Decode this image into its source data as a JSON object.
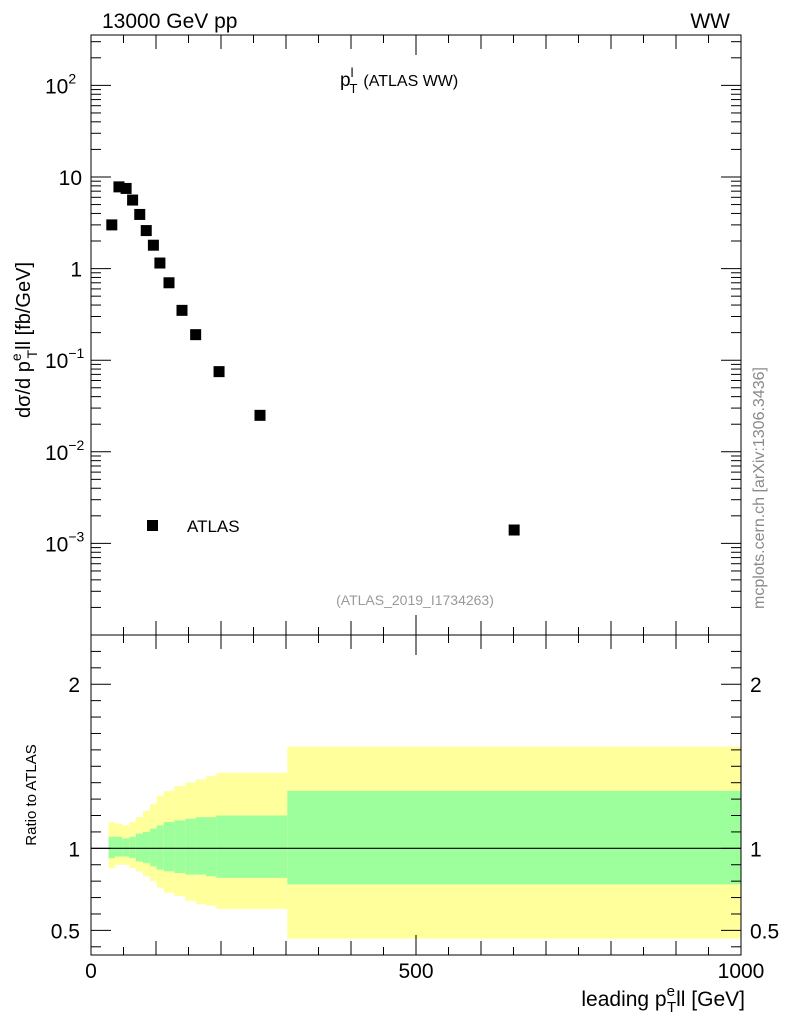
{
  "header": {
    "left": "13000 GeV pp",
    "right": "WW"
  },
  "side_label": "mcplots.cern.ch [arXiv:1306.3436]",
  "chart_data": {
    "type": "scatter",
    "title_main": "p",
    "title_sup": "l",
    "title_sub": "T",
    "title_rest": "(ATLAS WW)",
    "ref_note": "(ATLAS_2019_I1734263)",
    "ylabel_text": "dσ/d p",
    "ylabel_sup": "e",
    "ylabel_sub": "T",
    "ylabel_rest": "ll [fb/GeV]",
    "xlabel_text": "leading p",
    "xlabel_sup": "e",
    "xlabel_sub": "T",
    "xlabel_rest": "ll [GeV]",
    "xlim": [
      0,
      1000
    ],
    "ylim_log10": [
      -4,
      2.55
    ],
    "x_ticks": [
      "0",
      "500",
      "1000"
    ],
    "y_ticks": [
      {
        "base": "10",
        "exp": "2",
        "value": 100
      },
      {
        "base": "10",
        "exp": "",
        "value": 10
      },
      {
        "base": "1",
        "exp": "",
        "value": 1
      },
      {
        "base": "10",
        "exp": "−1",
        "value": 0.1
      },
      {
        "base": "10",
        "exp": "−2",
        "value": 0.01
      },
      {
        "base": "10",
        "exp": "−3",
        "value": 0.001
      }
    ],
    "legend": [
      {
        "label": "ATLAS",
        "marker": "square"
      }
    ],
    "series": [
      {
        "name": "ATLAS",
        "x": [
          32,
          43,
          54,
          64,
          75,
          85,
          96,
          106,
          120,
          140,
          161,
          197,
          260,
          651
        ],
        "y": [
          3.0,
          7.8,
          7.5,
          5.6,
          3.9,
          2.6,
          1.8,
          1.15,
          0.7,
          0.35,
          0.19,
          0.075,
          0.025,
          0.0014
        ]
      }
    ],
    "ratio": {
      "ylabel": "Ratio to ATLAS",
      "ylim": [
        0.35,
        2.3
      ],
      "y_ticks": [
        "2",
        "1",
        "0.5"
      ],
      "y_tick_values": [
        2,
        1,
        0.5
      ],
      "reference": 1,
      "colors": {
        "inner": "#9cff9c",
        "outer": "#ffff9c"
      },
      "bands": [
        {
          "x0": 27,
          "x1": 37,
          "inner": [
            0.94,
            1.07
          ],
          "outer": [
            0.88,
            1.16
          ]
        },
        {
          "x0": 37,
          "x1": 48,
          "inner": [
            0.95,
            1.07
          ],
          "outer": [
            0.9,
            1.15
          ]
        },
        {
          "x0": 48,
          "x1": 59,
          "inner": [
            0.95,
            1.06
          ],
          "outer": [
            0.9,
            1.14
          ]
        },
        {
          "x0": 59,
          "x1": 69,
          "inner": [
            0.94,
            1.07
          ],
          "outer": [
            0.88,
            1.16
          ]
        },
        {
          "x0": 69,
          "x1": 80,
          "inner": [
            0.92,
            1.09
          ],
          "outer": [
            0.86,
            1.19
          ]
        },
        {
          "x0": 80,
          "x1": 91,
          "inner": [
            0.91,
            1.1
          ],
          "outer": [
            0.83,
            1.23
          ]
        },
        {
          "x0": 91,
          "x1": 101,
          "inner": [
            0.89,
            1.12
          ],
          "outer": [
            0.8,
            1.27
          ]
        },
        {
          "x0": 101,
          "x1": 112,
          "inner": [
            0.87,
            1.14
          ],
          "outer": [
            0.76,
            1.32
          ]
        },
        {
          "x0": 112,
          "x1": 128,
          "inner": [
            0.86,
            1.16
          ],
          "outer": [
            0.73,
            1.35
          ]
        },
        {
          "x0": 128,
          "x1": 145,
          "inner": [
            0.85,
            1.17
          ],
          "outer": [
            0.71,
            1.38
          ]
        },
        {
          "x0": 145,
          "x1": 161,
          "inner": [
            0.84,
            1.18
          ],
          "outer": [
            0.68,
            1.4
          ]
        },
        {
          "x0": 161,
          "x1": 177,
          "inner": [
            0.84,
            1.19
          ],
          "outer": [
            0.66,
            1.42
          ]
        },
        {
          "x0": 177,
          "x1": 193,
          "inner": [
            0.83,
            1.19
          ],
          "outer": [
            0.65,
            1.44
          ]
        },
        {
          "x0": 193,
          "x1": 302,
          "inner": [
            0.82,
            1.2
          ],
          "outer": [
            0.63,
            1.46
          ]
        },
        {
          "x0": 302,
          "x1": 1000,
          "inner": [
            0.78,
            1.35
          ],
          "outer": [
            0.45,
            1.62
          ]
        }
      ]
    }
  }
}
